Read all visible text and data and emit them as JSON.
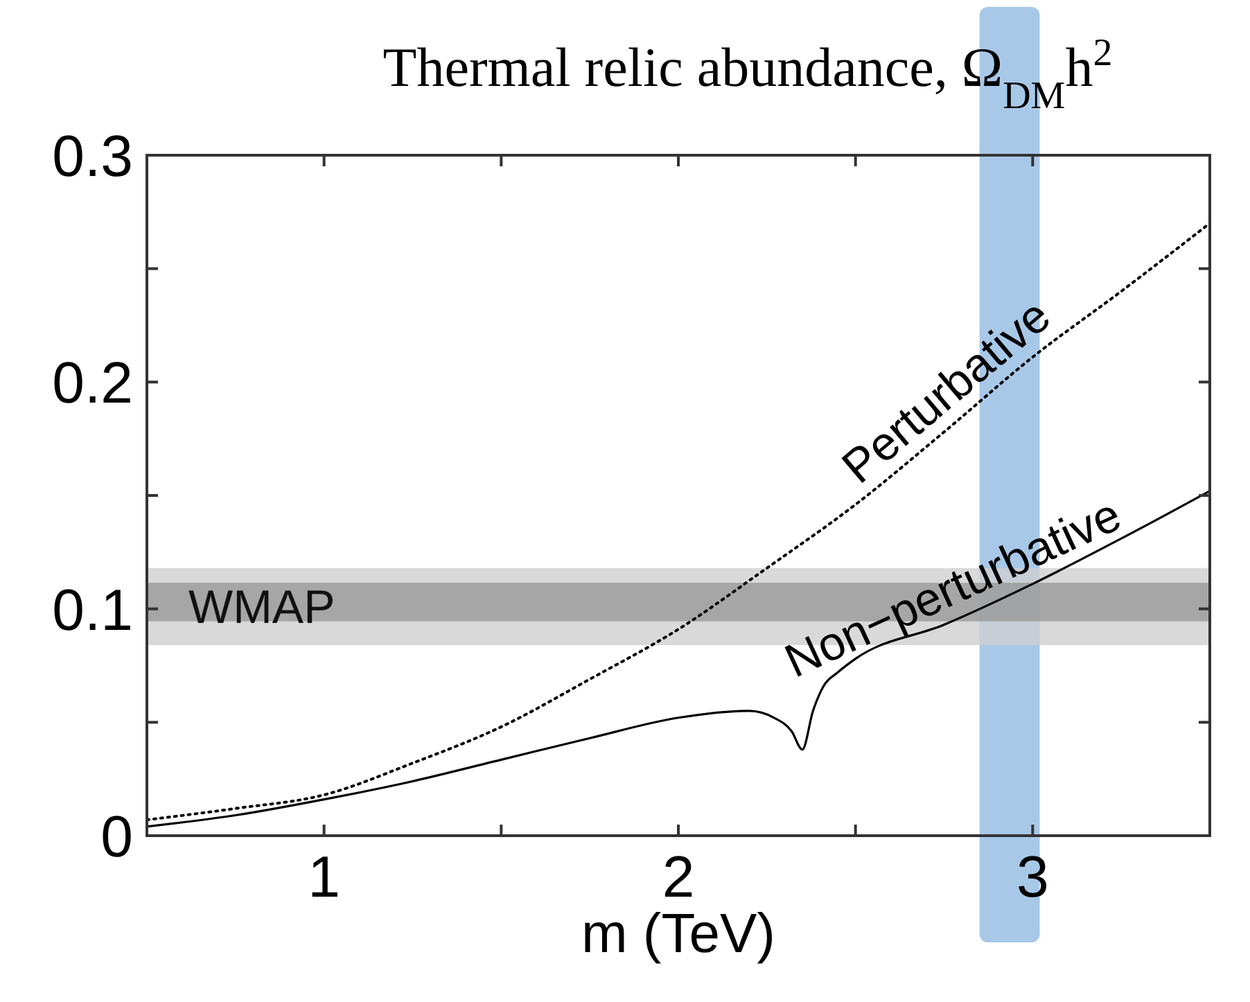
{
  "chart_data": {
    "type": "line",
    "title": "Thermal relic abundance, Ω$_{DM}$h$^{2}$",
    "xlabel": "m (TeV)",
    "xlim": [
      0.5,
      3.5
    ],
    "ylim": [
      0,
      0.3
    ],
    "xticks": [
      1,
      {
        "value": 1.5,
        "label": null
      },
      2,
      {
        "value": 2.5,
        "label": null
      },
      3
    ],
    "yticks": [
      0,
      {
        "value": 0.05,
        "label": null
      },
      0.1,
      {
        "value": 0.15,
        "label": null
      },
      0.2,
      {
        "value": 0.25,
        "label": null
      },
      0.3
    ],
    "bands": [
      {
        "axis": "y",
        "from": 0.084,
        "to": 0.118,
        "label": "WMAP",
        "color": "#d0d0d0"
      },
      {
        "axis": "y",
        "from": 0.0945,
        "to": 0.1115,
        "color": "#999999"
      },
      {
        "axis": "x",
        "from": 2.85,
        "to": 3.02,
        "color": "#a8c8e8"
      }
    ],
    "series": [
      {
        "name": "Perturbative",
        "color": "#000000",
        "line_style": "dotted",
        "x": [
          0.5,
          0.75,
          1,
          1.25,
          1.5,
          1.75,
          2,
          2.25,
          2.5,
          2.75,
          3,
          3.25,
          3.5
        ],
        "values": [
          0.007,
          0.012,
          0.018,
          0.032,
          0.048,
          0.069,
          0.091,
          0.118,
          0.146,
          0.178,
          0.211,
          0.24,
          0.27
        ]
      },
      {
        "name": "Non−perturbative",
        "color": "#000000",
        "line_style": "solid",
        "x": [
          0.5,
          0.75,
          1,
          1.25,
          1.5,
          1.75,
          2,
          2.2,
          2.27,
          2.32,
          2.35,
          2.38,
          2.41,
          2.45,
          2.5,
          2.75,
          3,
          3.25,
          3.5
        ],
        "values": [
          0.004,
          0.009,
          0.016,
          0.024,
          0.0335,
          0.043,
          0.052,
          0.055,
          0.052,
          0.046,
          0.038,
          0.055,
          0.066,
          0.072,
          0.078,
          0.093,
          0.111,
          0.131,
          0.152
        ]
      }
    ]
  }
}
